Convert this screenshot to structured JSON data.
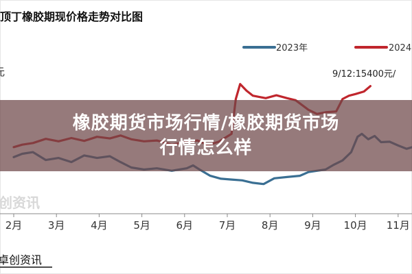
{
  "overlay": {
    "line1": "橡胶期货市场行情/橡胶期货市场",
    "line2": "行情怎么样"
  },
  "chart_data": {
    "type": "line",
    "title": "顶丁橡胶期现价格走势对比图",
    "categories": [
      "2月",
      "3月",
      "4月",
      "5月",
      "6月",
      "7月",
      "8月",
      "9月",
      "10月",
      "11月"
    ],
    "ylim": [
      12400,
      15800
    ],
    "grid": false,
    "legend_position": "top-right",
    "series": [
      {
        "name": "2023年",
        "color": "#3a6f93",
        "points": [
          [
            1.0,
            13500
          ],
          [
            1.2,
            13580
          ],
          [
            1.45,
            13620
          ],
          [
            1.75,
            13430
          ],
          [
            2.05,
            13480
          ],
          [
            2.35,
            13380
          ],
          [
            2.65,
            13540
          ],
          [
            2.95,
            13480
          ],
          [
            3.25,
            13520
          ],
          [
            3.5,
            13380
          ],
          [
            3.75,
            13250
          ],
          [
            4.05,
            13200
          ],
          [
            4.35,
            13230
          ],
          [
            4.7,
            13170
          ],
          [
            5.05,
            13230
          ],
          [
            5.2,
            13300
          ],
          [
            5.35,
            13200
          ],
          [
            5.6,
            13050
          ],
          [
            5.85,
            12980
          ],
          [
            6.1,
            12960
          ],
          [
            6.35,
            12940
          ],
          [
            6.6,
            12880
          ],
          [
            6.85,
            12850
          ],
          [
            7.1,
            12990
          ],
          [
            7.4,
            13020
          ],
          [
            7.7,
            13050
          ],
          [
            7.9,
            13140
          ],
          [
            8.1,
            13170
          ],
          [
            8.3,
            13200
          ],
          [
            8.5,
            13320
          ],
          [
            8.7,
            13420
          ],
          [
            8.9,
            13620
          ],
          [
            9.05,
            13990
          ],
          [
            9.15,
            14060
          ],
          [
            9.3,
            13930
          ],
          [
            9.45,
            14010
          ],
          [
            9.6,
            13860
          ],
          [
            9.8,
            13870
          ],
          [
            10.0,
            13780
          ],
          [
            10.2,
            13700
          ],
          [
            10.4,
            13760
          ],
          [
            10.6,
            13700
          ],
          [
            10.8,
            13760
          ],
          [
            11.0,
            13700
          ],
          [
            11.2,
            13720
          ]
        ]
      },
      {
        "name": "2024",
        "color": "#c0262d",
        "points": [
          [
            1.0,
            13740
          ],
          [
            1.2,
            13800
          ],
          [
            1.45,
            13840
          ],
          [
            1.75,
            13940
          ],
          [
            2.05,
            13880
          ],
          [
            2.35,
            13960
          ],
          [
            2.65,
            13890
          ],
          [
            2.95,
            13990
          ],
          [
            3.25,
            13950
          ],
          [
            3.5,
            14020
          ],
          [
            3.75,
            13930
          ],
          [
            4.05,
            13880
          ],
          [
            4.35,
            13900
          ],
          [
            4.7,
            13800
          ],
          [
            5.05,
            13870
          ],
          [
            5.3,
            13900
          ],
          [
            5.55,
            13790
          ],
          [
            5.8,
            13870
          ],
          [
            6.1,
            14060
          ],
          [
            6.2,
            14900
          ],
          [
            6.3,
            15260
          ],
          [
            6.45,
            15100
          ],
          [
            6.6,
            14980
          ],
          [
            6.9,
            14920
          ],
          [
            7.15,
            14990
          ],
          [
            7.4,
            14920
          ],
          [
            7.6,
            14870
          ],
          [
            7.9,
            14640
          ],
          [
            8.1,
            14540
          ],
          [
            8.3,
            14580
          ],
          [
            8.55,
            14600
          ],
          [
            8.7,
            14900
          ],
          [
            8.85,
            14980
          ],
          [
            9.0,
            15020
          ],
          [
            9.2,
            15080
          ],
          [
            9.35,
            15210
          ]
        ]
      }
    ],
    "annotation": "9/12:15400元/"
  },
  "footer": {
    "watermark": "创资讯",
    "source": "卓创资讯"
  }
}
